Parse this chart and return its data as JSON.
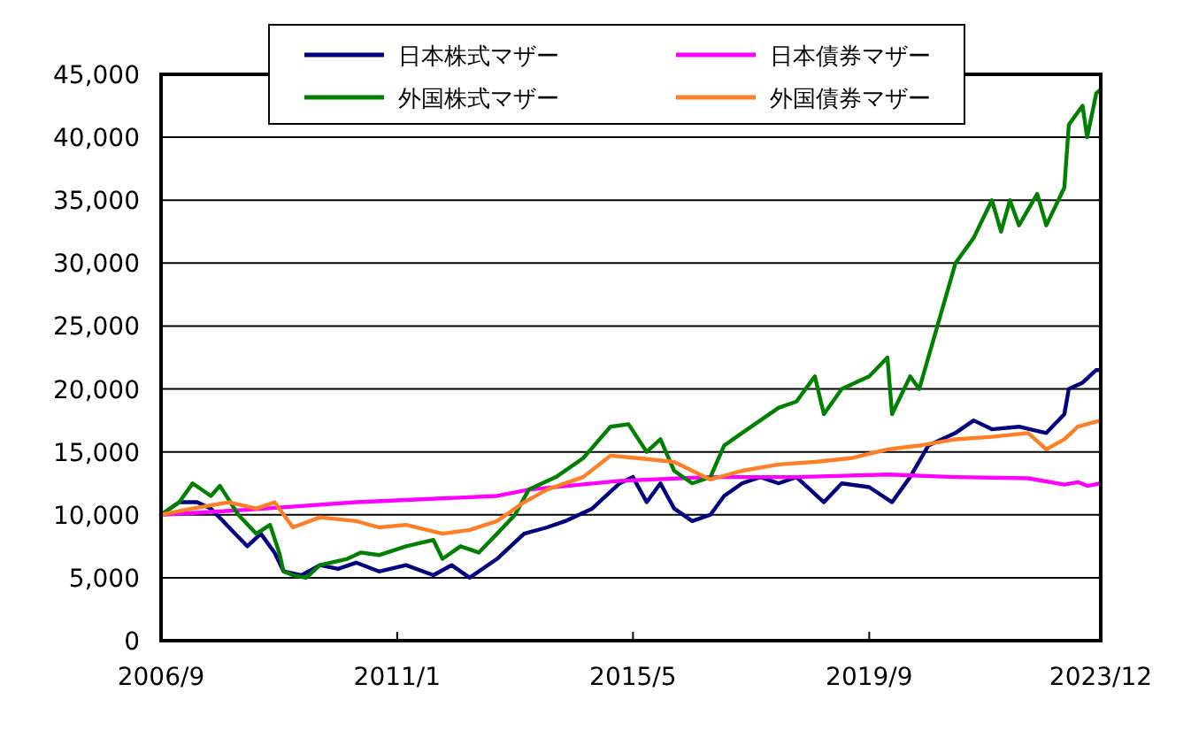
{
  "chart_data": {
    "type": "line",
    "legend": "top",
    "grid": "y",
    "line_style": "solid",
    "marker": "none",
    "xlim": [
      "2006-09",
      "2023-12"
    ],
    "xticks": [
      {
        "value": "2006-09",
        "label": "2006/9"
      },
      {
        "value": "2011-01",
        "label": "2011/1"
      },
      {
        "value": "2015-05",
        "label": "2015/5"
      },
      {
        "value": "2019-09",
        "label": "2019/9"
      },
      {
        "value": "2023-12",
        "label": "2023/12"
      }
    ],
    "ylim": [
      0,
      45000
    ],
    "yticks": [
      {
        "value": 0,
        "label": "0"
      },
      {
        "value": 5000,
        "label": "5,000"
      },
      {
        "value": 10000,
        "label": "10,000"
      },
      {
        "value": 15000,
        "label": "15,000"
      },
      {
        "value": 20000,
        "label": "20,000"
      },
      {
        "value": 25000,
        "label": "25,000"
      },
      {
        "value": 30000,
        "label": "30,000"
      },
      {
        "value": 35000,
        "label": "35,000"
      },
      {
        "value": 40000,
        "label": "40,000"
      },
      {
        "value": 45000,
        "label": "45,000"
      }
    ],
    "series": [
      {
        "name": "日本株式マザー",
        "color": "#000080",
        "x": [
          "2006-09",
          "2007-01",
          "2007-05",
          "2007-08",
          "2007-12",
          "2008-04",
          "2008-07",
          "2008-10",
          "2008-12",
          "2009-04",
          "2009-08",
          "2009-12",
          "2010-04",
          "2010-09",
          "2011-03",
          "2011-09",
          "2012-01",
          "2012-05",
          "2012-11",
          "2013-05",
          "2013-10",
          "2014-02",
          "2014-08",
          "2015-02",
          "2015-05",
          "2015-08",
          "2015-11",
          "2016-02",
          "2016-06",
          "2016-10",
          "2017-01",
          "2017-05",
          "2017-09",
          "2018-01",
          "2018-05",
          "2018-11",
          "2019-03",
          "2019-09",
          "2020-02",
          "2020-06",
          "2020-10",
          "2021-04",
          "2021-08",
          "2021-12",
          "2022-06",
          "2022-12",
          "2023-04",
          "2023-05",
          "2023-08",
          "2023-11",
          "2023-12"
        ],
        "values": [
          10000,
          11000,
          11000,
          10500,
          9000,
          7500,
          8500,
          7000,
          5500,
          5200,
          6000,
          5700,
          6200,
          5500,
          6000,
          5200,
          6000,
          5000,
          6500,
          8500,
          9000,
          9500,
          10500,
          12500,
          13000,
          11000,
          12500,
          10500,
          9500,
          10000,
          11500,
          12500,
          13000,
          12500,
          13000,
          11000,
          12500,
          12200,
          11000,
          13000,
          15500,
          16500,
          17500,
          16800,
          17000,
          16500,
          18000,
          20000,
          20500,
          21500,
          21500
        ]
      },
      {
        "name": "日本債券マザー",
        "color": "#ff00ff",
        "x": [
          "2006-09",
          "2008-04",
          "2010-04",
          "2012-11",
          "2013-06",
          "2015-02",
          "2016-10",
          "2018-05",
          "2020-01",
          "2021-04",
          "2022-08",
          "2023-04",
          "2023-07",
          "2023-09",
          "2023-12"
        ],
        "values": [
          10000,
          10400,
          11000,
          11500,
          12000,
          12700,
          13000,
          13000,
          13200,
          13000,
          12900,
          12400,
          12600,
          12300,
          12500
        ]
      },
      {
        "name": "外国株式マザー",
        "color": "#008000",
        "x": [
          "2006-09",
          "2007-01",
          "2007-04",
          "2007-08",
          "2007-10",
          "2008-02",
          "2008-06",
          "2008-09",
          "2008-11",
          "2008-12",
          "2009-02",
          "2009-05",
          "2009-08",
          "2010-02",
          "2010-05",
          "2010-09",
          "2011-03",
          "2011-09",
          "2011-11",
          "2012-03",
          "2012-07",
          "2012-11",
          "2013-03",
          "2013-06",
          "2013-12",
          "2014-06",
          "2014-12",
          "2015-04",
          "2015-08",
          "2015-11",
          "2016-02",
          "2016-06",
          "2016-10",
          "2017-01",
          "2017-05",
          "2018-01",
          "2018-05",
          "2018-09",
          "2018-11",
          "2019-03",
          "2019-09",
          "2020-01",
          "2020-02",
          "2020-06",
          "2020-08",
          "2020-12",
          "2021-04",
          "2021-08",
          "2021-12",
          "2022-02",
          "2022-04",
          "2022-06",
          "2022-10",
          "2022-12",
          "2023-04",
          "2023-05",
          "2023-08",
          "2023-09",
          "2023-11",
          "2023-12"
        ],
        "values": [
          10000,
          11000,
          12500,
          11500,
          12300,
          10000,
          8500,
          9200,
          7000,
          5500,
          5200,
          5000,
          6000,
          6500,
          7000,
          6800,
          7500,
          8000,
          6500,
          7500,
          7000,
          8500,
          10000,
          12000,
          13000,
          14500,
          17000,
          17200,
          15000,
          16000,
          13500,
          12500,
          13000,
          15500,
          16500,
          18500,
          19000,
          21000,
          18000,
          20000,
          21000,
          22500,
          18000,
          21000,
          20000,
          25000,
          30000,
          32000,
          35000,
          32500,
          35000,
          33000,
          35500,
          33000,
          36000,
          41000,
          42500,
          40000,
          43500,
          43800
        ]
      },
      {
        "name": "外国債券マザー",
        "color": "#ff7f27",
        "x": [
          "2006-09",
          "2007-04",
          "2007-12",
          "2008-06",
          "2008-10",
          "2009-02",
          "2009-08",
          "2010-04",
          "2010-09",
          "2011-03",
          "2011-11",
          "2012-05",
          "2012-11",
          "2013-05",
          "2013-10",
          "2014-06",
          "2014-12",
          "2015-06",
          "2016-02",
          "2016-06",
          "2016-10",
          "2017-05",
          "2018-01",
          "2018-09",
          "2019-05",
          "2020-01",
          "2020-08",
          "2021-04",
          "2021-12",
          "2022-08",
          "2022-12",
          "2023-04",
          "2023-07",
          "2023-12"
        ],
        "values": [
          10000,
          10500,
          11000,
          10500,
          11000,
          9000,
          9800,
          9500,
          9000,
          9200,
          8500,
          8800,
          9500,
          11000,
          12000,
          13000,
          14700,
          14500,
          14200,
          13500,
          12800,
          13500,
          14000,
          14200,
          14500,
          15200,
          15500,
          16000,
          16200,
          16500,
          15200,
          16000,
          17000,
          17500
        ]
      }
    ]
  }
}
